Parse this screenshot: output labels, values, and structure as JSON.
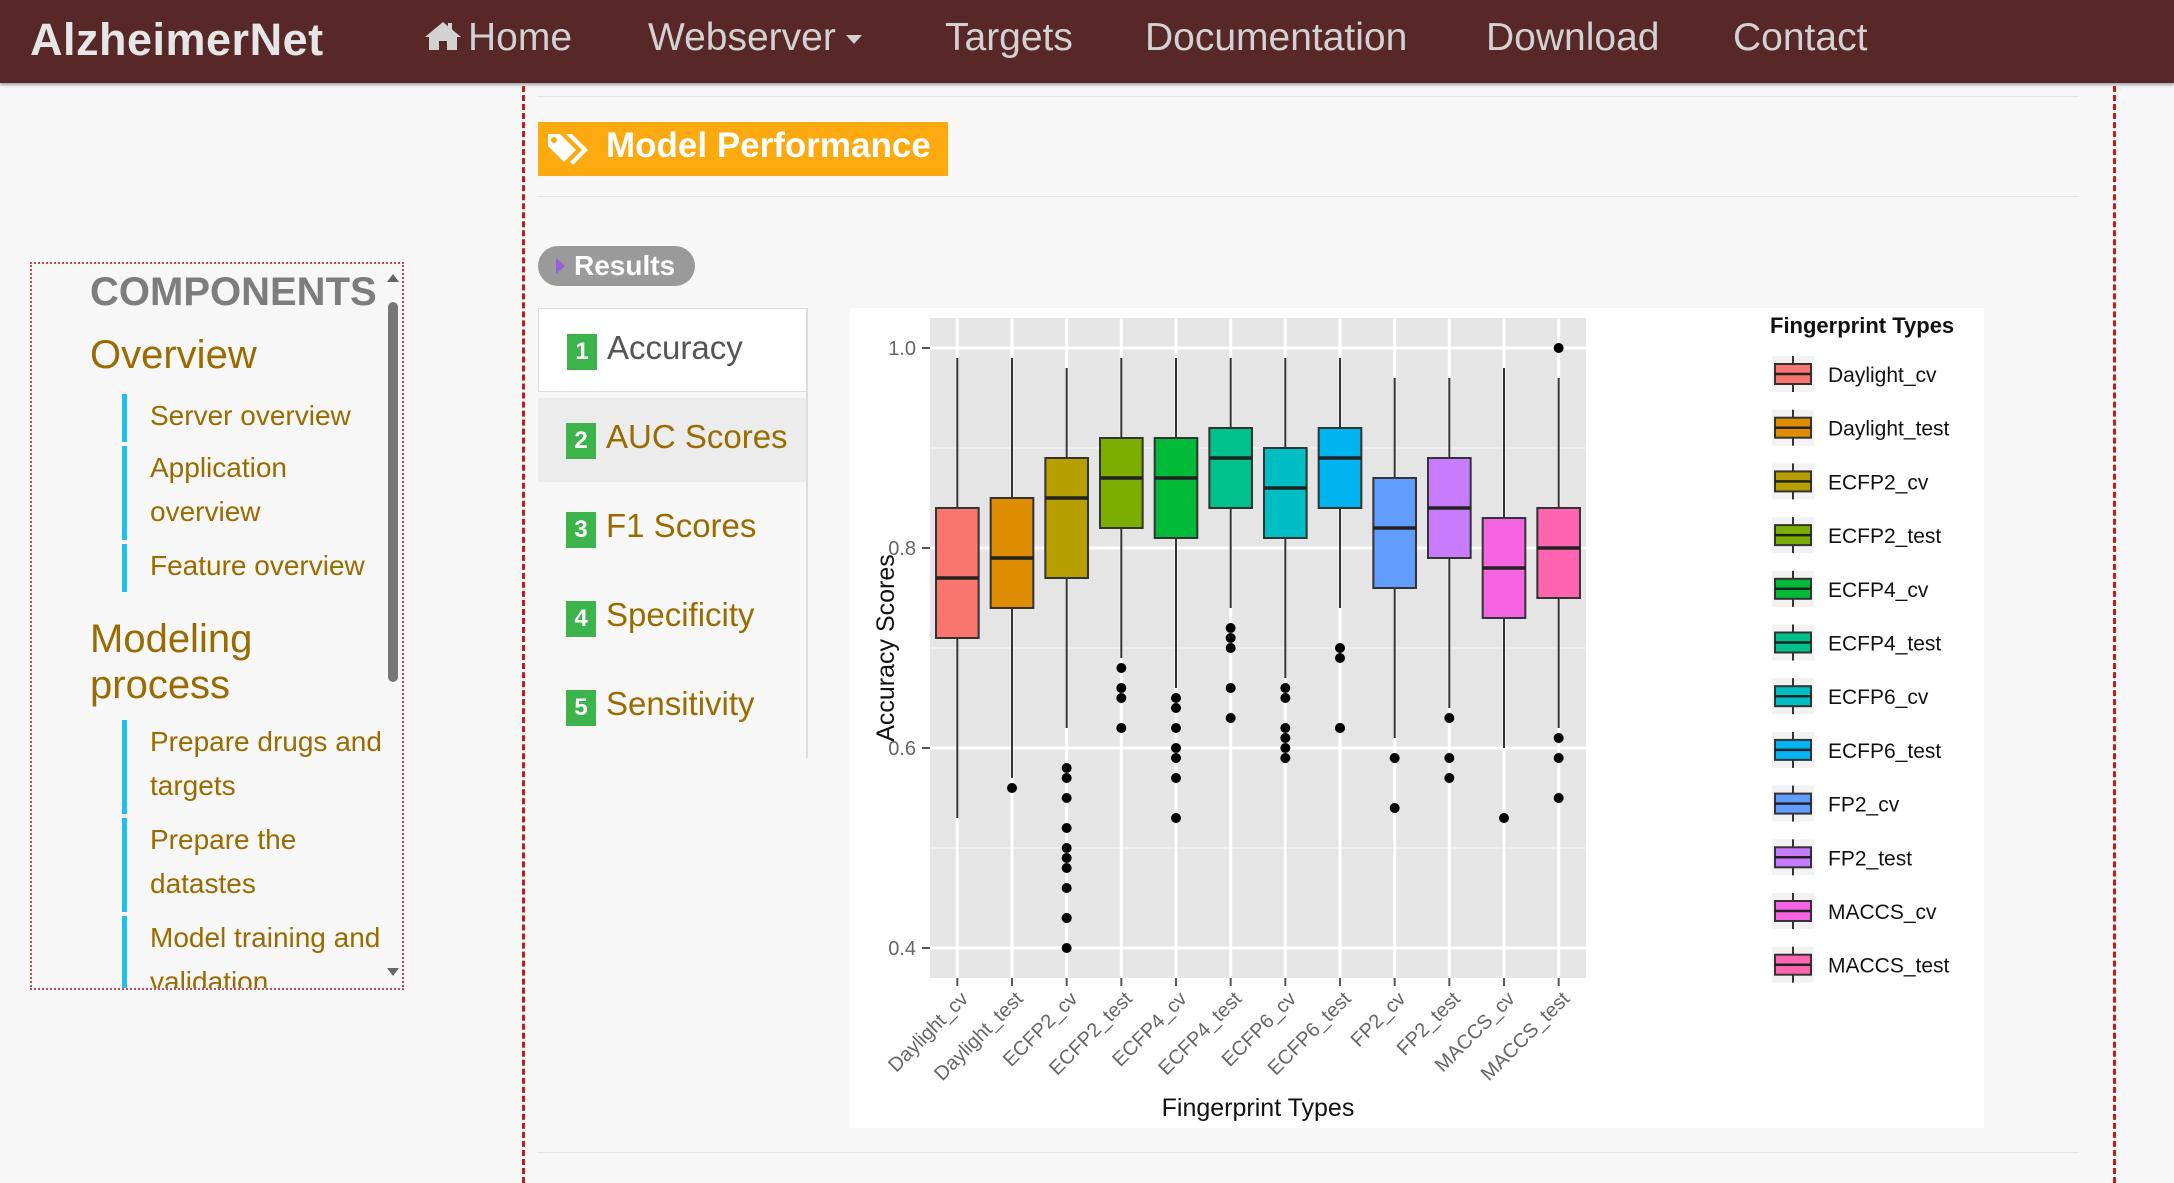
{
  "navbar": {
    "brand": "AlzheimerNet",
    "links": [
      {
        "label": "Home",
        "icon": "home-icon"
      },
      {
        "label": "Webserver",
        "dropdown": true
      },
      {
        "label": "Targets"
      },
      {
        "label": "Documentation"
      },
      {
        "label": "Download"
      },
      {
        "label": "Contact"
      }
    ],
    "bg": "#582727"
  },
  "sidebar": {
    "title": "COMPONENTS",
    "sections": [
      {
        "title": "Overview",
        "items": [
          "Server overview",
          "Application overview",
          "Feature overview"
        ]
      },
      {
        "title": "Modeling process",
        "items": [
          "Prepare drugs and targets",
          "Prepare the datastes",
          "Model training and validation"
        ]
      }
    ],
    "accent": "#1ec0f0"
  },
  "main": {
    "section_title": "Model Performance",
    "section_icon": "tags-icon",
    "badge": "Results",
    "tabs": [
      {
        "num": "1",
        "label": "Accuracy",
        "active": true
      },
      {
        "num": "2",
        "label": "AUC Scores"
      },
      {
        "num": "3",
        "label": "F1 Scores"
      },
      {
        "num": "4",
        "label": "Specificity"
      },
      {
        "num": "5",
        "label": "Sensitivity"
      }
    ],
    "tag_color": "#fcaa0f",
    "tab_num_color": "#3cb44b"
  },
  "chart_data": {
    "type": "box",
    "title": "",
    "xlabel": "Fingerprint Types",
    "ylabel": "Accuracy Scores",
    "legend_title": "Fingerprint Types",
    "legend_position": "right",
    "ylim": [
      0.37,
      1.03
    ],
    "yticks": [
      "0.4",
      "0.6",
      "0.8",
      "1.0"
    ],
    "grid": true,
    "categories": [
      "Daylight_cv",
      "Daylight_test",
      "ECFP2_cv",
      "ECFP2_test",
      "ECFP4_cv",
      "ECFP4_test",
      "ECFP6_cv",
      "ECFP6_test",
      "FP2_cv",
      "FP2_test",
      "MACCS_cv",
      "MACCS_test"
    ],
    "colors": [
      "#f8766d",
      "#de8c00",
      "#b79f00",
      "#7cae00",
      "#00ba38",
      "#00c08b",
      "#00bfc4",
      "#00b4f0",
      "#619cff",
      "#c77cff",
      "#f564e3",
      "#ff64b0"
    ],
    "boxes": [
      {
        "whislo": 0.53,
        "q1": 0.71,
        "med": 0.77,
        "q3": 0.84,
        "whishi": 0.99,
        "outliers": []
      },
      {
        "whislo": 0.57,
        "q1": 0.74,
        "med": 0.79,
        "q3": 0.85,
        "whishi": 0.99,
        "outliers": [
          0.56
        ]
      },
      {
        "whislo": 0.62,
        "q1": 0.77,
        "med": 0.85,
        "q3": 0.89,
        "whishi": 0.98,
        "outliers": [
          0.58,
          0.57,
          0.55,
          0.52,
          0.5,
          0.49,
          0.48,
          0.46,
          0.43,
          0.43,
          0.4
        ]
      },
      {
        "whislo": 0.69,
        "q1": 0.82,
        "med": 0.87,
        "q3": 0.91,
        "whishi": 0.99,
        "outliers": [
          0.68,
          0.66,
          0.65,
          0.62
        ]
      },
      {
        "whislo": 0.66,
        "q1": 0.81,
        "med": 0.87,
        "q3": 0.91,
        "whishi": 0.99,
        "outliers": [
          0.65,
          0.64,
          0.62,
          0.6,
          0.59,
          0.57,
          0.53
        ]
      },
      {
        "whislo": 0.74,
        "q1": 0.84,
        "med": 0.89,
        "q3": 0.92,
        "whishi": 0.99,
        "outliers": [
          0.72,
          0.71,
          0.7,
          0.66,
          0.63
        ]
      },
      {
        "whislo": 0.67,
        "q1": 0.81,
        "med": 0.86,
        "q3": 0.9,
        "whishi": 0.99,
        "outliers": [
          0.66,
          0.65,
          0.62,
          0.61,
          0.6,
          0.59
        ]
      },
      {
        "whislo": 0.74,
        "q1": 0.84,
        "med": 0.89,
        "q3": 0.92,
        "whishi": 0.99,
        "outliers": [
          0.7,
          0.69,
          0.62,
          0.62
        ]
      },
      {
        "whislo": 0.61,
        "q1": 0.76,
        "med": 0.82,
        "q3": 0.87,
        "whishi": 0.97,
        "outliers": [
          0.59,
          0.54
        ]
      },
      {
        "whislo": 0.64,
        "q1": 0.79,
        "med": 0.84,
        "q3": 0.89,
        "whishi": 0.97,
        "outliers": [
          0.63,
          0.59,
          0.57
        ]
      },
      {
        "whislo": 0.6,
        "q1": 0.73,
        "med": 0.78,
        "q3": 0.83,
        "whishi": 0.98,
        "outliers": [
          0.53
        ]
      },
      {
        "whislo": 0.62,
        "q1": 0.75,
        "med": 0.8,
        "q3": 0.84,
        "whishi": 0.97,
        "outliers": [
          1.0,
          0.61,
          0.59,
          0.55
        ]
      }
    ]
  }
}
